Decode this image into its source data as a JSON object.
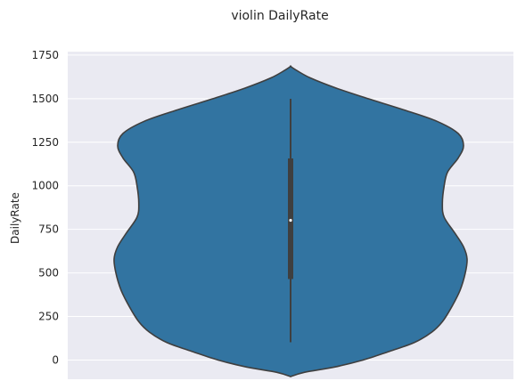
{
  "chart_data": {
    "type": "violin",
    "title": "violin DailyRate",
    "xlabel": "",
    "ylabel": "DailyRate",
    "ylim": [
      -110,
      1770
    ],
    "yticks": [
      0,
      250,
      500,
      750,
      1000,
      1250,
      1500,
      1750
    ],
    "ytick_labels": [
      "0",
      "250",
      "500",
      "750",
      "1000",
      "1250",
      "1500",
      "1750"
    ],
    "grid": true,
    "colors": {
      "background": "#eaeaf2",
      "grid": "#ffffff",
      "violin_fill": "#3274a1",
      "outline": "#3f3f3f",
      "median": "#ffffff"
    },
    "violin": {
      "extent": [
        -95,
        1685
      ],
      "whisker_low": 102,
      "q1": 465,
      "median": 802,
      "q3": 1157,
      "whisker_high": 1499,
      "density_profile": [
        {
          "y": -95,
          "w": 0.0
        },
        {
          "y": -70,
          "w": 0.08
        },
        {
          "y": -40,
          "w": 0.25
        },
        {
          "y": 0,
          "w": 0.41
        },
        {
          "y": 50,
          "w": 0.56
        },
        {
          "y": 100,
          "w": 0.7
        },
        {
          "y": 160,
          "w": 0.8
        },
        {
          "y": 220,
          "w": 0.86
        },
        {
          "y": 300,
          "w": 0.91
        },
        {
          "y": 400,
          "w": 0.96
        },
        {
          "y": 500,
          "w": 0.99
        },
        {
          "y": 580,
          "w": 1.0
        },
        {
          "y": 650,
          "w": 0.98
        },
        {
          "y": 730,
          "w": 0.93
        },
        {
          "y": 820,
          "w": 0.87
        },
        {
          "y": 900,
          "w": 0.86
        },
        {
          "y": 1000,
          "w": 0.87
        },
        {
          "y": 1080,
          "w": 0.89
        },
        {
          "y": 1160,
          "w": 0.95
        },
        {
          "y": 1230,
          "w": 0.98
        },
        {
          "y": 1300,
          "w": 0.95
        },
        {
          "y": 1370,
          "w": 0.83
        },
        {
          "y": 1430,
          "w": 0.66
        },
        {
          "y": 1500,
          "w": 0.44
        },
        {
          "y": 1560,
          "w": 0.26
        },
        {
          "y": 1620,
          "w": 0.11
        },
        {
          "y": 1665,
          "w": 0.03
        },
        {
          "y": 1685,
          "w": 0.0
        }
      ]
    }
  }
}
